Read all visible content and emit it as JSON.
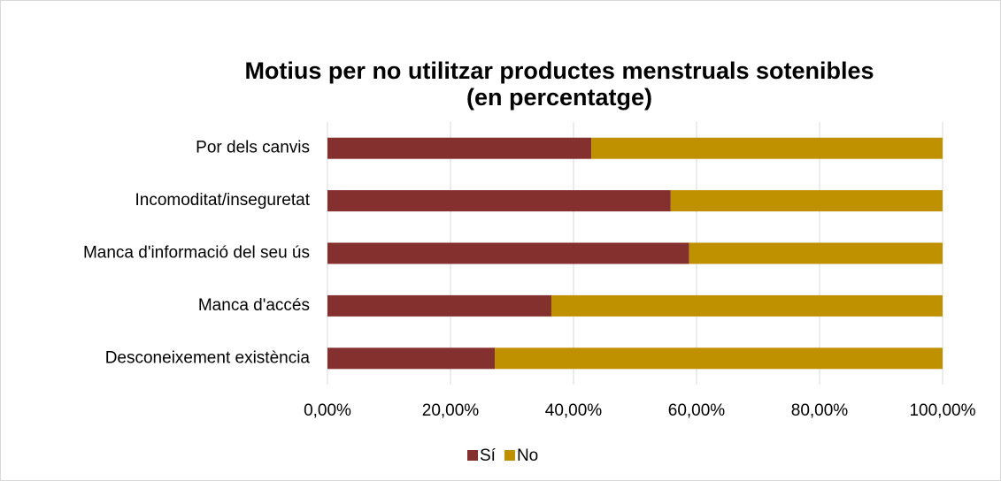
{
  "chart_data": {
    "type": "bar",
    "orientation": "horizontal",
    "stacked": true,
    "title": [
      "Motius per no utilitzar productes menstruals sotenibles",
      "(en percentatge)"
    ],
    "categories": [
      "Por dels canvis",
      "Incomoditat/inseguretat",
      "Manca d'informació del seu ús",
      "Manca d'accés",
      "Desconeixement existència"
    ],
    "series": [
      {
        "name": "Sí",
        "color": "#84302e",
        "values": [
          42.9,
          55.8,
          58.8,
          36.4,
          27.2
        ]
      },
      {
        "name": "No",
        "color": "#bf9000",
        "values": [
          57.1,
          44.2,
          41.2,
          63.6,
          72.8
        ]
      }
    ],
    "xlim": [
      0,
      100
    ],
    "xticks": [
      {
        "value": 0,
        "label": "0,00%"
      },
      {
        "value": 20,
        "label": "20,00%"
      },
      {
        "value": 40,
        "label": "40,00%"
      },
      {
        "value": 60,
        "label": "60,00%"
      },
      {
        "value": 80,
        "label": "80,00%"
      },
      {
        "value": 100,
        "label": "100,00%"
      }
    ],
    "grid": true,
    "legend": "bottom"
  }
}
